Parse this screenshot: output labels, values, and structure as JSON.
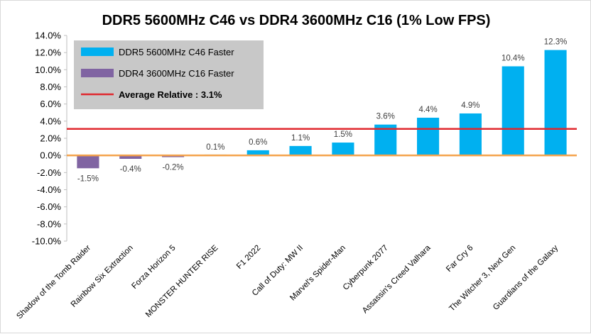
{
  "chart_data": {
    "type": "bar",
    "title": "DDR5 5600MHz C46 vs DDR4 3600MHz C16 (1% Low FPS)",
    "categories": [
      "Shadow of the Tomb Raider",
      "Rainbow Six Extraction",
      "Forza Horizon 5",
      "MONSTER HUNTER RISE",
      "F1 2022",
      "Call of Duty: MW II",
      "Marvel's Spider-Man",
      "Cyberpunk 2077",
      "Assassin's Creed Valhara",
      "Far Cry 6",
      "The Witcher 3, Next Gen",
      "Guardians of the Galaxy"
    ],
    "values": [
      -1.5,
      -0.4,
      -0.2,
      0.1,
      0.6,
      1.1,
      1.5,
      3.6,
      4.4,
      4.9,
      10.4,
      12.3
    ],
    "data_labels": [
      "-1.5%",
      "-0.4%",
      "-0.2%",
      "0.1%",
      "0.6%",
      "1.1%",
      "1.5%",
      "3.6%",
      "4.4%",
      "4.9%",
      "10.4%",
      "12.3%"
    ],
    "ylim": [
      -10,
      14
    ],
    "yticks": [
      -10,
      -8,
      -6,
      -4,
      -2,
      0,
      2,
      4,
      6,
      8,
      10,
      12,
      14
    ],
    "ytick_labels": [
      "-10.0%",
      "-8.0%",
      "-6.0%",
      "-4.0%",
      "-2.0%",
      "0.0%",
      "2.0%",
      "4.0%",
      "6.0%",
      "8.0%",
      "10.0%",
      "12.0%",
      "14.0%"
    ],
    "average": 3.1,
    "xlabel": "",
    "ylabel": "",
    "grid": false,
    "legend": {
      "placement": "top-left",
      "entries": [
        {
          "label": "DDR5 5600MHz C46 Faster",
          "color": "#00b0f0",
          "kind": "bar"
        },
        {
          "label": "DDR4 3600MHz C16 Faster",
          "color": "#8064a2",
          "kind": "bar"
        },
        {
          "label": "Average Relative : 3.1%",
          "color": "#e0282e",
          "kind": "line"
        }
      ]
    },
    "colors": {
      "positive": "#00b0f0",
      "negative": "#8064a2",
      "average_line": "#e0282e",
      "zero_line": "#f4a24b",
      "legend_bg": "#c8c8c8"
    }
  }
}
